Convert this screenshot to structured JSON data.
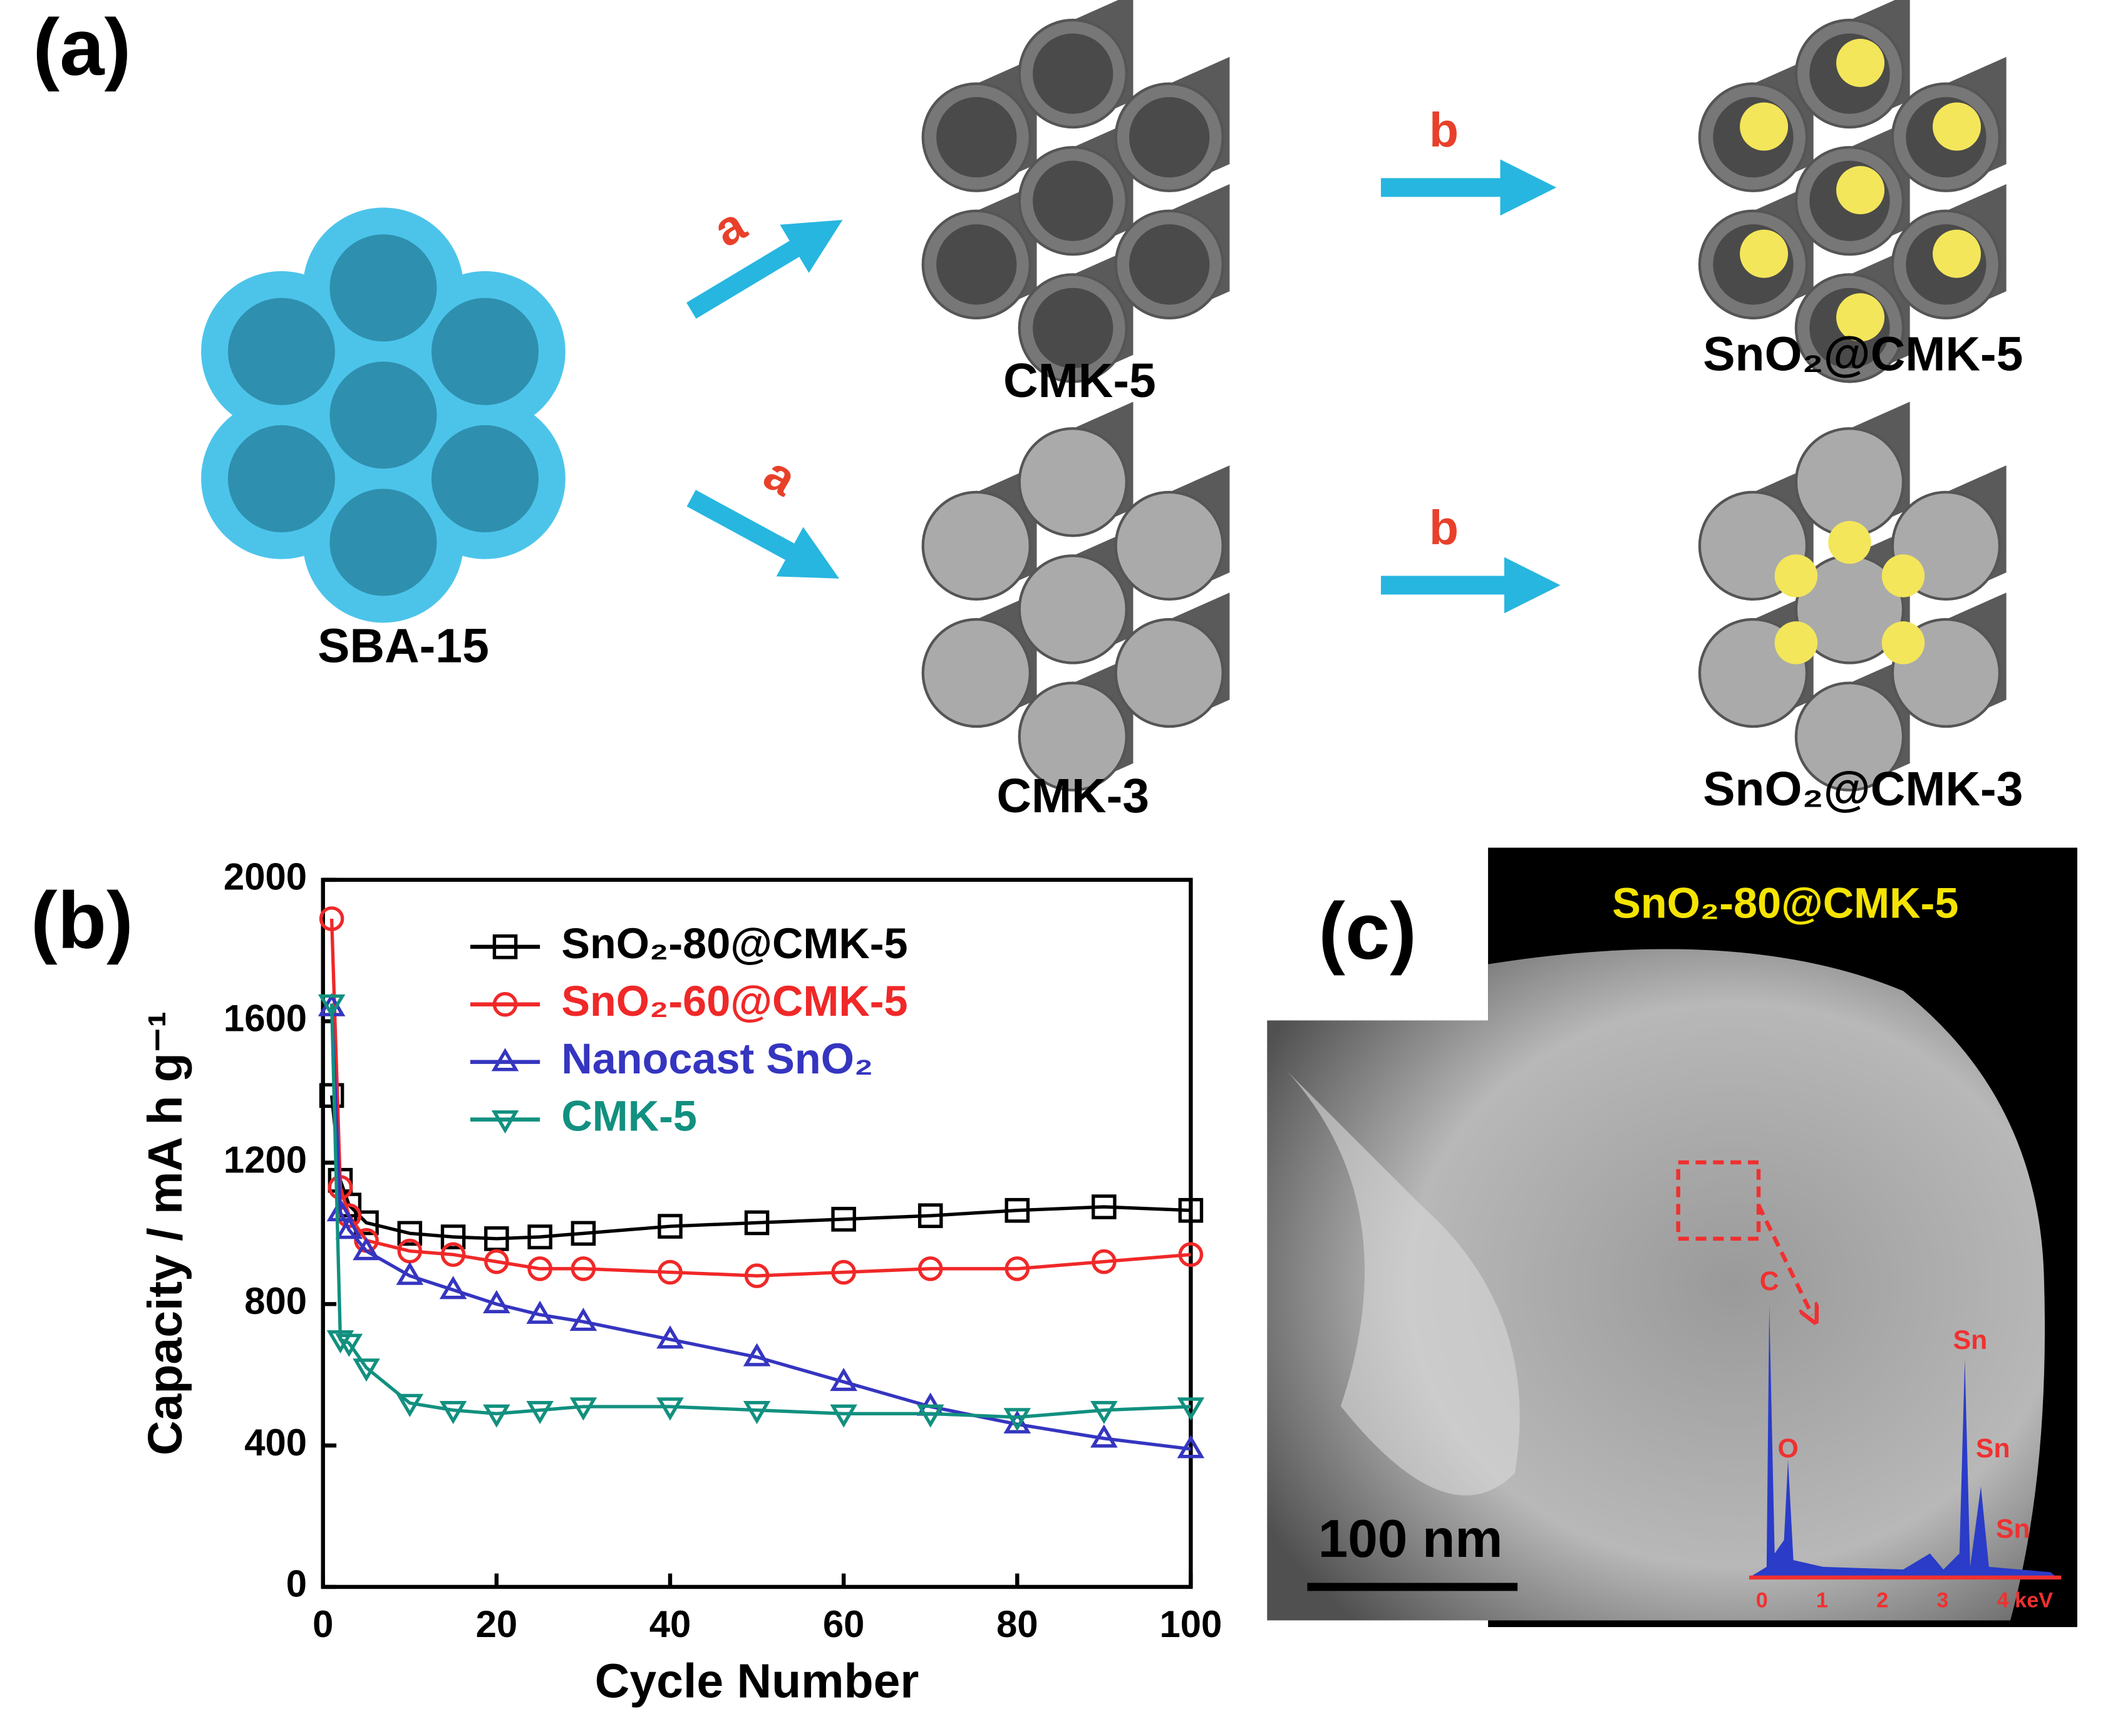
{
  "panel_a": {
    "label": "(a)",
    "step_a": "a",
    "step_b": "b",
    "sba": "SBA-15",
    "cmk5": "CMK-5",
    "cmk3": "CMK-3",
    "sno2_cmk5": "SnO₂@CMK-5",
    "sno2_cmk3": "SnO₂@CMK-3"
  },
  "panel_b": {
    "label": "(b)"
  },
  "chart_data": {
    "type": "line",
    "x_label": "Cycle Number",
    "y_label": "Capacity / mA h g⁻¹",
    "x": [
      1,
      2,
      3,
      5,
      10,
      15,
      20,
      25,
      30,
      40,
      50,
      60,
      70,
      80,
      90,
      100
    ],
    "series": [
      {
        "name": "SnO₂-80@CMK-5",
        "color": "#000000",
        "marker": "square",
        "values": [
          1390,
          1150,
          1080,
          1030,
          1000,
          990,
          985,
          990,
          1000,
          1020,
          1030,
          1040,
          1050,
          1065,
          1075,
          1065
        ]
      },
      {
        "name": "SnO₂-60@CMK-5",
        "color": "#f02828",
        "marker": "circle",
        "values": [
          1890,
          1130,
          1050,
          980,
          950,
          940,
          920,
          900,
          900,
          890,
          880,
          890,
          900,
          900,
          920,
          940
        ]
      },
      {
        "name": "Nanocast SnO₂",
        "color": "#3535c0",
        "marker": "triangle-up",
        "values": [
          1640,
          1060,
          1010,
          950,
          880,
          840,
          800,
          770,
          750,
          700,
          650,
          580,
          510,
          460,
          420,
          390
        ]
      },
      {
        "name": "CMK-5",
        "color": "#12907f",
        "marker": "triangle-down",
        "values": [
          1650,
          700,
          690,
          620,
          520,
          500,
          490,
          500,
          510,
          510,
          500,
          490,
          490,
          480,
          500,
          510
        ]
      }
    ],
    "xlim": [
      0,
      100
    ],
    "xticks": [
      0,
      20,
      40,
      60,
      80,
      100
    ],
    "ylim": [
      0,
      2000
    ],
    "yticks": [
      0,
      400,
      800,
      1200,
      1600,
      2000
    ]
  },
  "panel_c": {
    "label": "(c)",
    "title": "SnO₂-80@CMK-5",
    "scale_bar": "100 nm",
    "peaks": [
      "C",
      "O",
      "Sn",
      "Sn",
      "Sn"
    ],
    "energy_ticks": [
      "0",
      "1",
      "2",
      "3",
      "4 keV"
    ]
  }
}
